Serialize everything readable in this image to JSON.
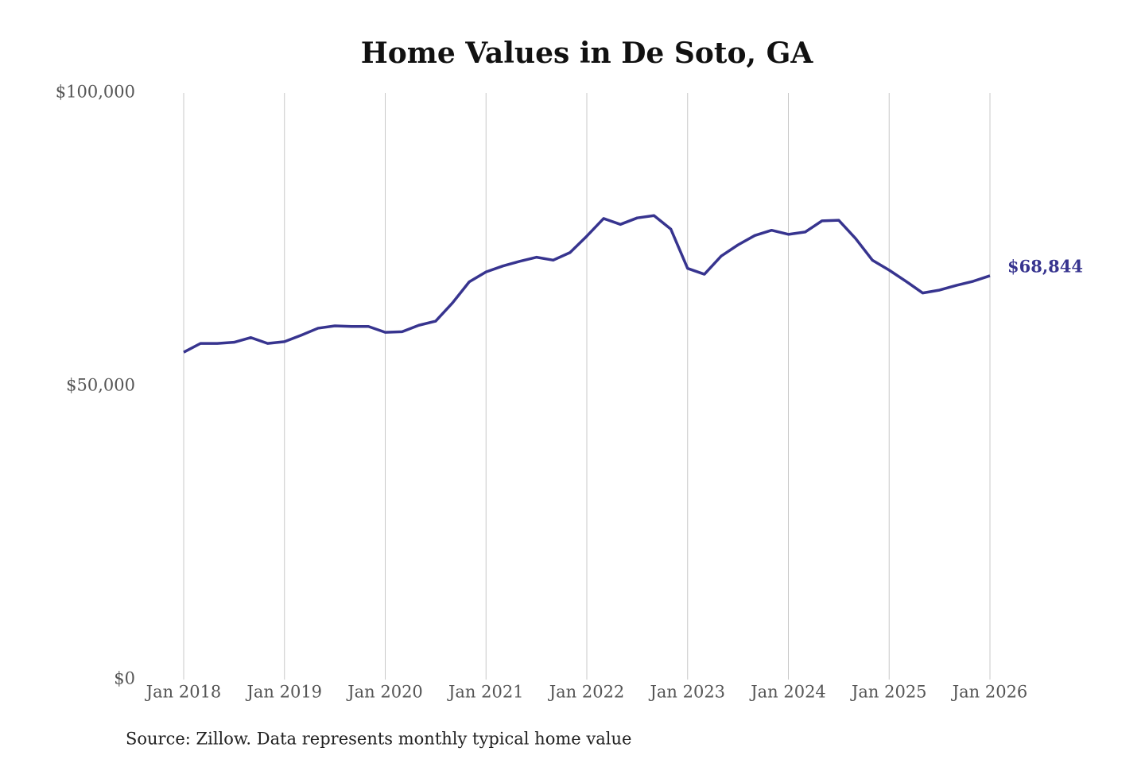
{
  "chart_data": {
    "type": "line",
    "title": "Home Values in De Soto, GA",
    "source": "Source: Zillow. Data represents monthly typical home value",
    "x": [
      "2018-01",
      "2018-03",
      "2018-05",
      "2018-07",
      "2018-09",
      "2018-11",
      "2019-01",
      "2019-03",
      "2019-05",
      "2019-07",
      "2019-09",
      "2019-11",
      "2020-01",
      "2020-03",
      "2020-05",
      "2020-07",
      "2020-09",
      "2020-11",
      "2021-01",
      "2021-03",
      "2021-05",
      "2021-07",
      "2021-09",
      "2021-11",
      "2022-01",
      "2022-03",
      "2022-05",
      "2022-07",
      "2022-09",
      "2022-11",
      "2023-01",
      "2023-03",
      "2023-05",
      "2023-07",
      "2023-09",
      "2023-11",
      "2024-01",
      "2024-03",
      "2024-05",
      "2024-07",
      "2024-09",
      "2024-11",
      "2025-01",
      "2025-03",
      "2025-05",
      "2025-07",
      "2025-09",
      "2025-11",
      "2026-01"
    ],
    "series": [
      {
        "name": "Home value",
        "color": "#37348f",
        "values": [
          55800,
          57300,
          57300,
          57500,
          58300,
          57300,
          57600,
          58700,
          59900,
          60300,
          60200,
          60200,
          59200,
          59300,
          60400,
          61100,
          64200,
          67800,
          69500,
          70500,
          71300,
          72000,
          71500,
          72800,
          75600,
          78600,
          77600,
          78700,
          79100,
          76800,
          70100,
          69100,
          72200,
          74100,
          75700,
          76600,
          75900,
          76300,
          78200,
          78300,
          75200,
          71500,
          69800,
          67900,
          65900,
          66400,
          67200,
          67900,
          68844
        ],
        "value_labels": [
          null,
          null,
          null,
          null,
          null,
          null,
          null,
          null,
          null,
          null,
          null,
          null,
          null,
          null,
          null,
          null,
          null,
          null,
          null,
          null,
          null,
          null,
          null,
          null,
          null,
          null,
          null,
          null,
          null,
          null,
          null,
          null,
          null,
          null,
          null,
          null,
          null,
          null,
          null,
          null,
          null,
          null,
          null,
          null,
          null,
          null,
          null,
          null,
          "$68,844"
        ]
      }
    ],
    "xlim": [
      "2018-01",
      "2026-01"
    ],
    "xticks": [
      {
        "value": "2018-01",
        "label": "Jan 2018"
      },
      {
        "value": "2019-01",
        "label": "Jan 2019"
      },
      {
        "value": "2020-01",
        "label": "Jan 2020"
      },
      {
        "value": "2021-01",
        "label": "Jan 2021"
      },
      {
        "value": "2022-01",
        "label": "Jan 2022"
      },
      {
        "value": "2023-01",
        "label": "Jan 2023"
      },
      {
        "value": "2024-01",
        "label": "Jan 2024"
      },
      {
        "value": "2025-01",
        "label": "Jan 2025"
      },
      {
        "value": "2026-01",
        "label": "Jan 2026"
      }
    ],
    "ylim": [
      0,
      100000
    ],
    "yticks": [
      {
        "value": 0,
        "label": "$0"
      },
      {
        "value": 50000,
        "label": "$50,000"
      },
      {
        "value": 100000,
        "label": "$100,000"
      }
    ],
    "grid": "x"
  }
}
